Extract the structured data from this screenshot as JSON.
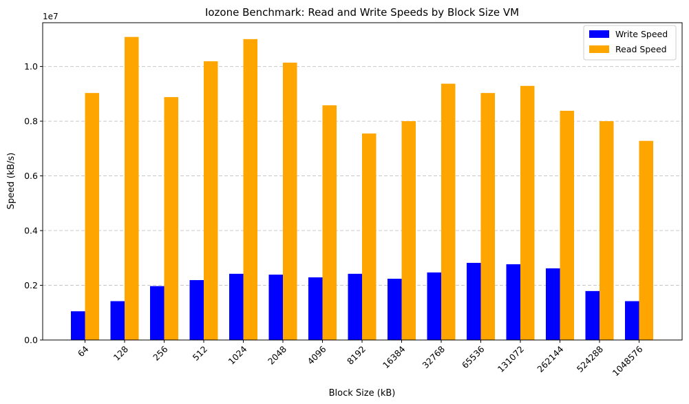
{
  "chart_data": {
    "type": "bar",
    "title": "Iozone Benchmark: Read and Write Speeds by Block Size VM",
    "xlabel": "Block Size (kB)",
    "ylabel": "Speed (kB/s)",
    "y_offset_label": "1e7",
    "ylim": [
      0,
      11600000
    ],
    "yticks": [
      0,
      2000000,
      4000000,
      6000000,
      8000000,
      10000000
    ],
    "ytick_labels": [
      "0.0",
      "0.2",
      "0.4",
      "0.6",
      "0.8",
      "1.0"
    ],
    "grid": "y dashed",
    "legend_position": "top-right",
    "categories": [
      "64",
      "128",
      "256",
      "512",
      "1024",
      "2048",
      "4096",
      "8192",
      "16384",
      "32768",
      "65536",
      "131072",
      "262144",
      "524288",
      "1048576"
    ],
    "series": [
      {
        "name": "Write Speed",
        "color": "#0000ff",
        "values": [
          1050000,
          1420000,
          1970000,
          2190000,
          2420000,
          2390000,
          2290000,
          2420000,
          2240000,
          2470000,
          2820000,
          2770000,
          2620000,
          1790000,
          1420000
        ]
      },
      {
        "name": "Read Speed",
        "color": "#ffa500",
        "values": [
          9030000,
          11080000,
          8880000,
          10190000,
          11000000,
          10140000,
          8580000,
          7550000,
          8000000,
          9370000,
          9030000,
          9290000,
          8380000,
          8000000,
          7280000
        ]
      }
    ]
  }
}
